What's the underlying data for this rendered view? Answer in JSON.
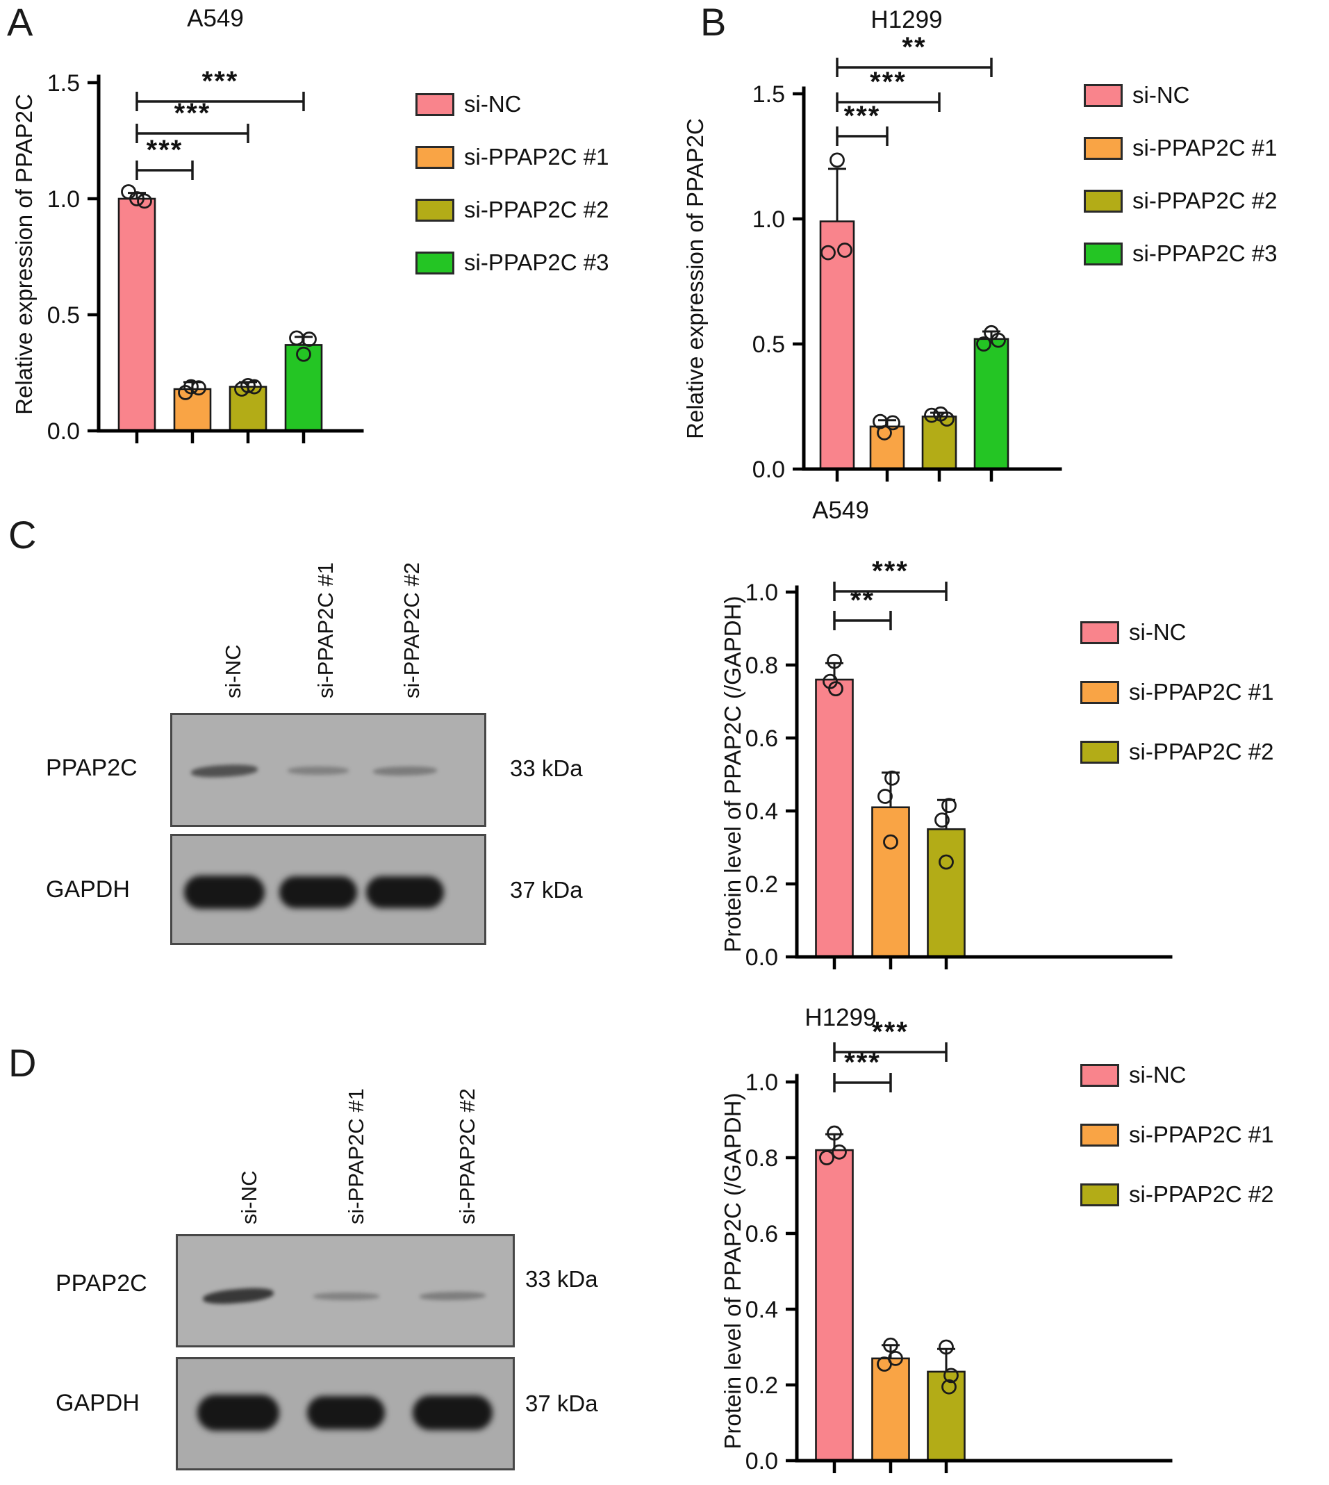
{
  "panels": {
    "a": "A",
    "b": "B",
    "c": "C",
    "d": "D"
  },
  "colors": {
    "si_nc": "#F9848C",
    "si_1": "#F9A445",
    "si_2": "#B3AC17",
    "si_3": "#24C524"
  },
  "chart_data": [
    {
      "id": "A",
      "type": "bar",
      "title": "A549",
      "ylabel": "Relative expression of PPAP2C",
      "ylim": [
        0,
        1.5
      ],
      "yticks": [
        0,
        0.5,
        1.0,
        1.5
      ],
      "ytick_labels": [
        "0.0",
        "0.5",
        "1.0",
        "1.5"
      ],
      "categories": [
        "si-NC",
        "si-PPAP2C #1",
        "si-PPAP2C #2",
        "si-PPAP2C #3"
      ],
      "legend": [
        "si-NC",
        "si-PPAP2C #1",
        "si-PPAP2C #2",
        "si-PPAP2C #3"
      ],
      "colors": [
        "#F9848C",
        "#F9A445",
        "#B3AC17",
        "#24C524"
      ],
      "values": [
        1.0,
        0.18,
        0.19,
        0.37
      ],
      "errors": [
        0.025,
        0.03,
        0.02,
        0.035
      ],
      "points": [
        [
          1.03,
          1.0,
          0.99
        ],
        [
          0.165,
          0.19,
          0.185
        ],
        [
          0.18,
          0.195,
          0.19
        ],
        [
          0.4,
          0.395,
          0.33
        ]
      ],
      "significance": [
        {
          "from": 0,
          "to": 1,
          "label": "***"
        },
        {
          "from": 0,
          "to": 2,
          "label": "***"
        },
        {
          "from": 0,
          "to": 3,
          "label": "***"
        }
      ]
    },
    {
      "id": "B",
      "type": "bar",
      "title": "H1299",
      "ylabel": "Relative expression of PPAP2C",
      "ylim": [
        0,
        1.5
      ],
      "yticks": [
        0,
        0.5,
        1.0,
        1.5
      ],
      "ytick_labels": [
        "0.0",
        "0.5",
        "1.0",
        "1.5"
      ],
      "categories": [
        "si-NC",
        "si-PPAP2C #1",
        "si-PPAP2C #2",
        "si-PPAP2C #3"
      ],
      "legend": [
        "si-NC",
        "si-PPAP2C #1",
        "si-PPAP2C #2",
        "si-PPAP2C #3"
      ],
      "colors": [
        "#F9848C",
        "#F9A445",
        "#B3AC17",
        "#24C524"
      ],
      "values": [
        0.99,
        0.17,
        0.21,
        0.52
      ],
      "errors": [
        0.21,
        0.025,
        0.015,
        0.03
      ],
      "points": [
        [
          0.865,
          0.875,
          1.235
        ],
        [
          0.19,
          0.185,
          0.145
        ],
        [
          0.215,
          0.22,
          0.2
        ],
        [
          0.5,
          0.545,
          0.515
        ]
      ],
      "significance": [
        {
          "from": 0,
          "to": 1,
          "label": "***"
        },
        {
          "from": 0,
          "to": 2,
          "label": "***"
        },
        {
          "from": 0,
          "to": 3,
          "label": "**"
        }
      ]
    },
    {
      "id": "C",
      "type": "bar",
      "title": "A549",
      "ylabel": "Protein level of PPAP2C (/GAPDH)",
      "ylim": [
        0,
        1.0
      ],
      "yticks": [
        0,
        0.2,
        0.4,
        0.6,
        0.8,
        1.0
      ],
      "ytick_labels": [
        "0.0",
        "0.2",
        "0.4",
        "0.6",
        "0.8",
        "1.0"
      ],
      "categories": [
        "si-NC",
        "si-PPAP2C #1",
        "si-PPAP2C #2"
      ],
      "legend": [
        "si-NC",
        "si-PPAP2C #1",
        "si-PPAP2C #2"
      ],
      "colors": [
        "#F9848C",
        "#F9A445",
        "#B3AC17"
      ],
      "values": [
        0.76,
        0.41,
        0.35
      ],
      "errors": [
        0.045,
        0.095,
        0.08
      ],
      "points": [
        [
          0.735,
          0.755,
          0.81
        ],
        [
          0.315,
          0.44,
          0.49
        ],
        [
          0.26,
          0.375,
          0.415
        ]
      ],
      "significance": [
        {
          "from": 0,
          "to": 1,
          "label": "**"
        },
        {
          "from": 0,
          "to": 2,
          "label": "***"
        }
      ]
    },
    {
      "id": "D",
      "type": "bar",
      "title": "H1299",
      "ylabel": "Protein level of PPAP2C (/GAPDH)",
      "ylim": [
        0,
        1.0
      ],
      "yticks": [
        0,
        0.2,
        0.4,
        0.6,
        0.8,
        1.0
      ],
      "ytick_labels": [
        "0.0",
        "0.2",
        "0.4",
        "0.6",
        "0.8",
        "1.0"
      ],
      "categories": [
        "si-NC",
        "si-PPAP2C #1",
        "si-PPAP2C #2"
      ],
      "legend": [
        "si-NC",
        "si-PPAP2C #1",
        "si-PPAP2C #2"
      ],
      "colors": [
        "#F9848C",
        "#F9A445",
        "#B3AC17"
      ],
      "values": [
        0.82,
        0.27,
        0.235
      ],
      "errors": [
        0.042,
        0.035,
        0.06
      ],
      "points": [
        [
          0.8,
          0.815,
          0.865
        ],
        [
          0.255,
          0.27,
          0.305
        ],
        [
          0.195,
          0.225,
          0.3
        ]
      ],
      "significance": [
        {
          "from": 0,
          "to": 1,
          "label": "***"
        },
        {
          "from": 0,
          "to": 2,
          "label": "***"
        }
      ]
    }
  ],
  "blots": {
    "c": {
      "lanes": [
        "si-NC",
        "si-PPAP2C #1",
        "si-PPAP2C #2"
      ],
      "rows": [
        {
          "label": "PPAP2C",
          "size": "33 kDa",
          "band_intensities": [
            0.62,
            0.3,
            0.34
          ]
        },
        {
          "label": "GAPDH",
          "size": "37 kDa",
          "band_intensities": [
            1,
            1,
            1
          ]
        }
      ]
    },
    "d": {
      "lanes": [
        "si-NC",
        "si-PPAP2C #1",
        "si-PPAP2C #2"
      ],
      "rows": [
        {
          "label": "PPAP2C",
          "size": "33 kDa",
          "band_intensities": [
            0.78,
            0.3,
            0.33
          ]
        },
        {
          "label": "GAPDH",
          "size": "37 kDa",
          "band_intensities": [
            1,
            1,
            1
          ]
        }
      ]
    }
  }
}
